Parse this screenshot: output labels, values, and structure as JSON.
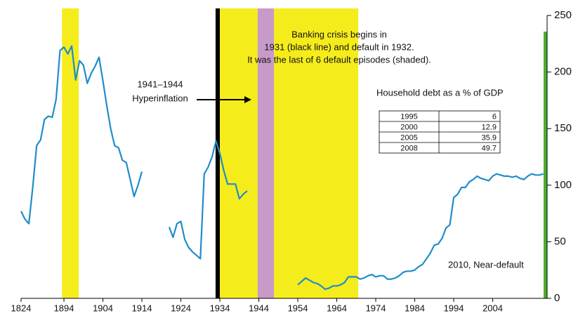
{
  "chart_data": {
    "type": "line",
    "categories": [
      "1824",
      null,
      null,
      null,
      null,
      null,
      null,
      null,
      null,
      null,
      null,
      "1894",
      null,
      null,
      null,
      null,
      null,
      null,
      null,
      null,
      null,
      "1904",
      null,
      null,
      null,
      null,
      null,
      null,
      null,
      null,
      null,
      "1914",
      null,
      null,
      null,
      null,
      null,
      null,
      null,
      null,
      null,
      "1924",
      null,
      null,
      null,
      null,
      null,
      null,
      null,
      null,
      null,
      "1934",
      null,
      null,
      null,
      null,
      null,
      null,
      null,
      null,
      null,
      "1944",
      null,
      null,
      null,
      null,
      null,
      null,
      null,
      null,
      null,
      "1954",
      null,
      null,
      null,
      null,
      null,
      null,
      null,
      null,
      null,
      "1964",
      null,
      null,
      null,
      null,
      null,
      null,
      null,
      null,
      null,
      "1974",
      null,
      null,
      null,
      null,
      null,
      null,
      null,
      null,
      null,
      "1984",
      null,
      null,
      null,
      null,
      null,
      null,
      null,
      null,
      null,
      "1994",
      null,
      null,
      null,
      null,
      null,
      null,
      null,
      null,
      null,
      "2004",
      null,
      null,
      null,
      null,
      null,
      null,
      null,
      null,
      null,
      null,
      null,
      null,
      null
    ],
    "series": [
      {
        "color": "#1f8dc9",
        "values": [
          77,
          70,
          66,
          98,
          135,
          140,
          158,
          161,
          160,
          176,
          219,
          222,
          216,
          223,
          193,
          210,
          206,
          190,
          199,
          205,
          213,
          192,
          170,
          150,
          135,
          133,
          122,
          120,
          105,
          90,
          100,
          112,
          null,
          null,
          null,
          null,
          null,
          null,
          63,
          54,
          66,
          68,
          52,
          45,
          41,
          38,
          35,
          110,
          116,
          125,
          139,
          128,
          113,
          101,
          101,
          101,
          88,
          92,
          95,
          null,
          null,
          null,
          null,
          null,
          null,
          null,
          null,
          null,
          null,
          null,
          null,
          12,
          15,
          18,
          16,
          14,
          13,
          11,
          8,
          9,
          11,
          11,
          12,
          14,
          19,
          19,
          19,
          17,
          18,
          20,
          21,
          19,
          20,
          20,
          17,
          17,
          18,
          20,
          23,
          24,
          24,
          25,
          28,
          30,
          35,
          40,
          47,
          48,
          53,
          62,
          65,
          89,
          92,
          98,
          98,
          103,
          105,
          108,
          106,
          105,
          104,
          108,
          110,
          109,
          108,
          108,
          107,
          108,
          106,
          105,
          108,
          110,
          109,
          109,
          110
        ]
      }
    ],
    "ylim": [
      0,
      250
    ],
    "yticks": [
      0,
      50,
      100,
      150,
      200,
      250
    ],
    "y_axis_side": "right",
    "spans": [
      {
        "start": 10.5,
        "end": 14.8,
        "color": "#f5ec1c"
      },
      {
        "start": 49.9,
        "end": 51,
        "color": "#000000"
      },
      {
        "start": 51,
        "end": 60.7,
        "color": "#f5ec1c"
      },
      {
        "start": 60.7,
        "end": 64.9,
        "color": "#c89ac8"
      },
      {
        "start": 64.9,
        "end": 86.5,
        "color": "#f5ec1c"
      }
    ],
    "annotations": {
      "banking": [
        "Banking crisis begins in",
        "1931 (black line) and default in 1932.",
        "It was the last of 6 default episodes (shaded)."
      ],
      "hyperinflation": [
        "1941–1944",
        "Hyperinflation"
      ],
      "near_default": "2010, Near-default"
    },
    "household_table": {
      "title": "Household debt as a % of GDP",
      "rows": [
        [
          "1995",
          "6"
        ],
        [
          "2000",
          "12.9"
        ],
        [
          "2005",
          "35.9"
        ],
        [
          "2008",
          "49.7"
        ]
      ]
    }
  }
}
